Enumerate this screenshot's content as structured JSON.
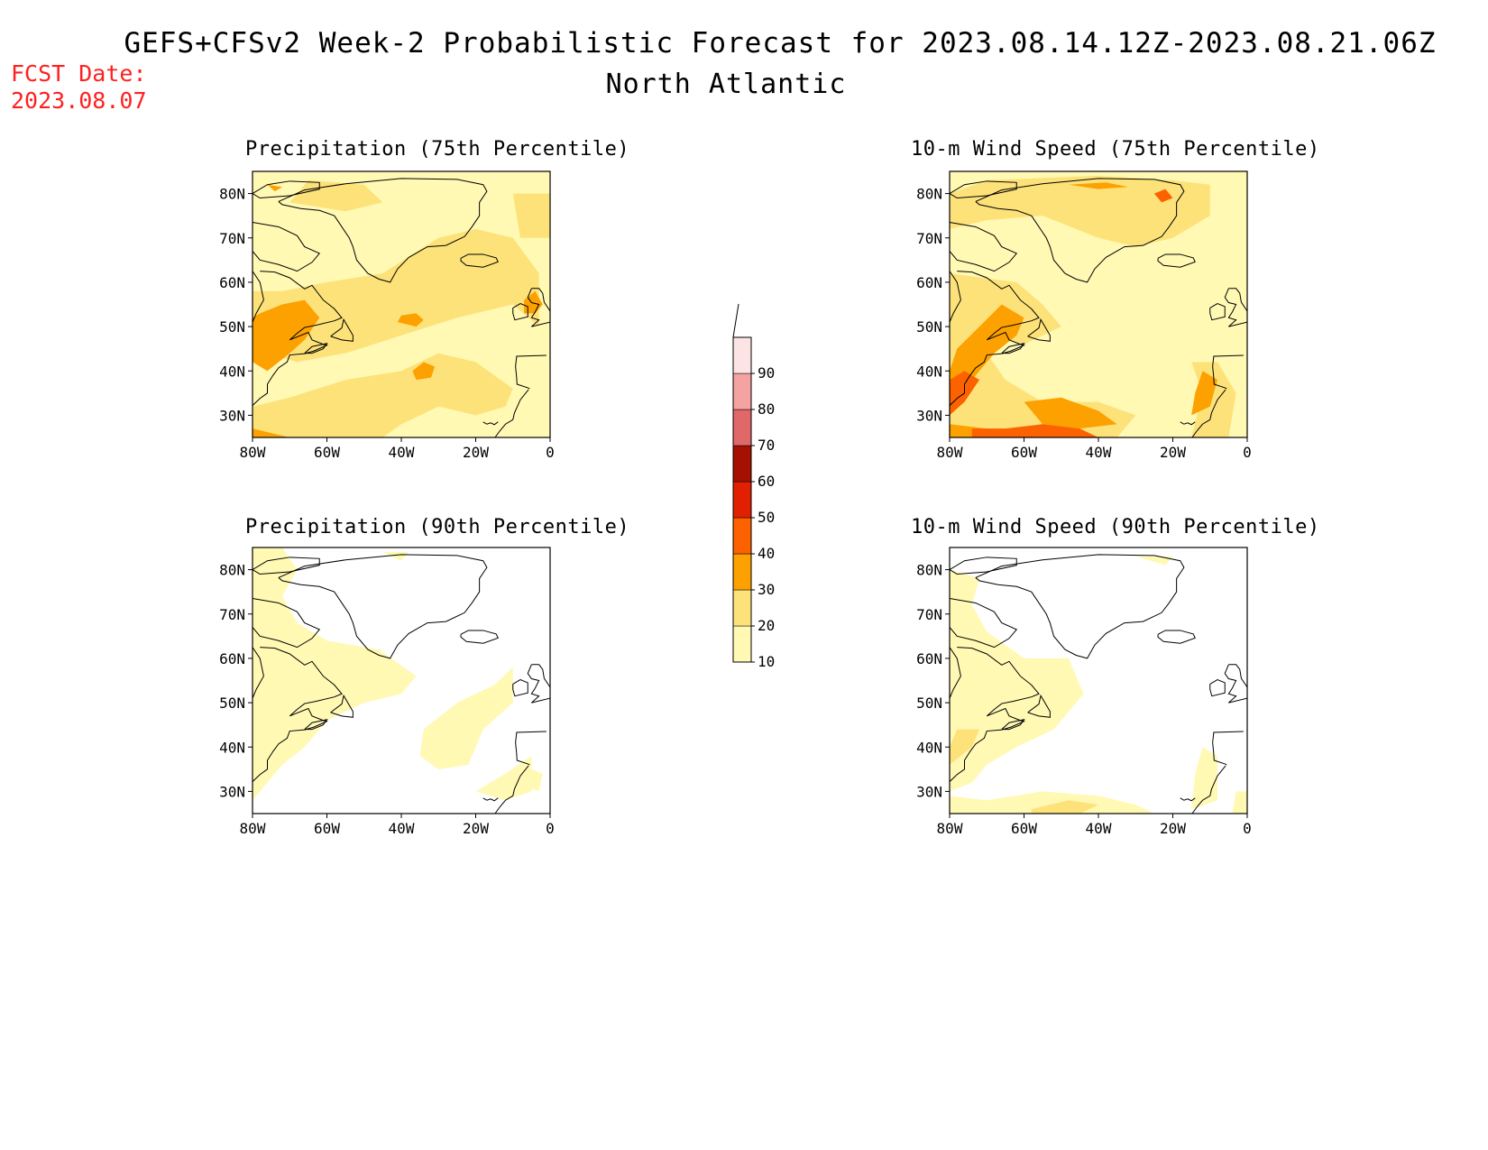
{
  "header": {
    "title": "GEFS+CFSv2 Week-2 Probabilistic Forecast for 2023.08.14.12Z-2023.08.21.06Z",
    "subtitle": "North Atlantic",
    "fcst_label": "FCST Date:",
    "fcst_date": "2023.08.07"
  },
  "panels": [
    {
      "id": "precip75",
      "title": "Precipitation (75th Percentile)"
    },
    {
      "id": "wind75",
      "title": "10-m Wind Speed (75th Percentile)"
    },
    {
      "id": "precip90",
      "title": "Precipitation (90th Percentile)"
    },
    {
      "id": "wind90",
      "title": "10-m Wind Speed (90th Percentile)"
    }
  ],
  "axes": {
    "lat_labels": [
      "80N",
      "70N",
      "60N",
      "50N",
      "40N",
      "30N"
    ],
    "lon_labels": [
      "80W",
      "60W",
      "40W",
      "20W",
      "0"
    ]
  },
  "colorbar": {
    "levels": [
      "10",
      "20",
      "30",
      "40",
      "50",
      "60",
      "70",
      "80",
      "90"
    ],
    "colors": [
      "#fff9b4",
      "#fde27a",
      "#fca100",
      "#fc6200",
      "#e02000",
      "#a51000",
      "#e06868",
      "#f5a2a2",
      "#fde4e4"
    ]
  }
}
